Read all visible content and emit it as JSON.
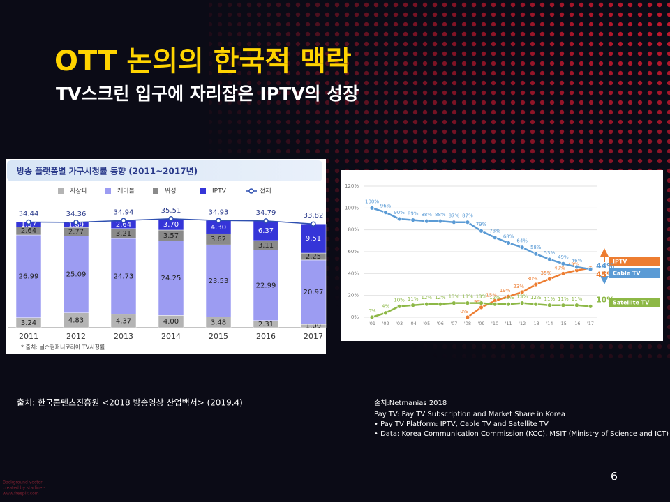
{
  "slide": {
    "title": "OTT 논의의 한국적 맥락",
    "subtitle": "TV스크린 입구에 자리잡은 IPTV의 성장",
    "source_left": "출처: 한국콘텐츠진흥원 <2018 방송영상 산업백서> (2019.4)",
    "source_right": [
      "출처:Netmanias 2018",
      "Pay TV: Pay TV Subscription and Market Share in Korea",
      "• Pay TV Platform: IPTV, Cable TV and Satellite TV",
      "• Data: Korea Communication Commission (KCC), MSIT (Ministry of Science and ICT)"
    ],
    "page_number": "6",
    "credit": [
      "Background vector",
      "created by starline -",
      "www.freepik.com"
    ]
  },
  "chart_data": [
    {
      "type": "bar",
      "stacked": true,
      "title": "방송 플랫폼별 가구시청률 동향 (2011~2017년)",
      "source": "* 출처: 닐슨컴퍼니코리아 TV시청률",
      "categories": [
        "2011",
        "2012",
        "2013",
        "2014",
        "2015",
        "2016",
        "2017"
      ],
      "series": [
        {
          "name": "지상파",
          "color": "#b4b4b4",
          "values": [
            3.24,
            4.83,
            4.37,
            4.0,
            3.48,
            2.31,
            1.09
          ],
          "value_labels": [
            "3.24",
            "4.83",
            "4.37",
            "4.00",
            "3.48",
            "2.31",
            "1.09"
          ]
        },
        {
          "name": "케이블",
          "color": "#9c9cf2",
          "values": [
            26.99,
            25.09,
            24.73,
            24.25,
            23.53,
            22.99,
            20.97
          ],
          "value_labels": [
            "26.99",
            "25.09",
            "24.73",
            "24.25",
            "23.53",
            "22.99",
            "20.97"
          ]
        },
        {
          "name": "위성",
          "color": "#8a8a8a",
          "values": [
            2.64,
            2.77,
            3.21,
            3.57,
            3.62,
            3.11,
            2.25
          ],
          "value_labels": [
            "2.64",
            "2.77",
            "3.21",
            "3.57",
            "3.62",
            "3.11",
            "2.25"
          ]
        },
        {
          "name": "IPTV",
          "color": "#3535d8",
          "values": [
            1.57,
            1.69,
            2.64,
            3.7,
            4.3,
            6.37,
            9.51
          ],
          "value_labels": [
            "1.57",
            "1.69",
            "2.64",
            "3.70",
            "4.30",
            "6.37",
            "9.51"
          ]
        },
        {
          "name": "전체",
          "type": "line",
          "color": "#2e4fb0",
          "values": [
            34.44,
            34.36,
            34.94,
            35.51,
            34.93,
            34.79,
            33.82
          ],
          "value_labels": [
            "34.44",
            "34.36",
            "34.94",
            "35.51",
            "34.93",
            "34.79",
            "33.82"
          ]
        }
      ]
    },
    {
      "type": "line",
      "categories": [
        "'01",
        "'02",
        "'03",
        "'04",
        "'05",
        "'06",
        "'07",
        "'08",
        "'09",
        "'10",
        "'11",
        "'12",
        "'13",
        "'14",
        "'15",
        "'16",
        "'17"
      ],
      "ylim": [
        0,
        120
      ],
      "yticks": [
        {
          "value": 0,
          "label": "0%"
        },
        {
          "value": 20,
          "label": "20%"
        },
        {
          "value": 40,
          "label": "40%"
        },
        {
          "value": 60,
          "label": "60%"
        },
        {
          "value": 80,
          "label": "80%"
        },
        {
          "value": 100,
          "label": "100%"
        },
        {
          "value": 120,
          "label": "120%"
        }
      ],
      "grid": true,
      "series": [
        {
          "name": "IPTV",
          "color": "#ed7d31",
          "values": [
            null,
            null,
            null,
            null,
            null,
            null,
            null,
            0,
            9,
            15,
            19,
            23,
            30,
            35,
            40,
            43,
            45
          ],
          "value_labels": [
            null,
            null,
            null,
            null,
            null,
            null,
            null,
            "0%",
            "9%",
            "15%",
            "19%",
            "23%",
            "30%",
            "35%",
            "40%",
            "43%",
            "45%"
          ]
        },
        {
          "name": "Cable TV",
          "color": "#5b9bd5",
          "values": [
            100,
            96,
            90,
            89,
            88,
            88,
            87,
            87,
            79,
            73,
            68,
            64,
            58,
            53,
            49,
            46,
            44
          ],
          "value_labels": [
            "100%",
            "96%",
            "90%",
            "89%",
            "88%",
            "88%",
            "87%",
            "87%",
            "79%",
            "73%",
            "68%",
            "64%",
            "58%",
            "53%",
            "49%",
            "46%",
            "44%"
          ]
        },
        {
          "name": "Satellite TV",
          "color": "#8db846",
          "values": [
            0,
            4,
            10,
            11,
            12,
            12,
            13,
            13,
            13,
            12,
            12,
            13,
            12,
            11,
            11,
            11,
            10
          ],
          "value_labels": [
            "0%",
            "4%",
            "10%",
            "11%",
            "12%",
            "12%",
            "13%",
            "13%",
            "13%",
            "12%",
            "12%",
            "13%",
            "12%",
            "11%",
            "11%",
            "11%",
            "10%"
          ]
        }
      ]
    }
  ]
}
